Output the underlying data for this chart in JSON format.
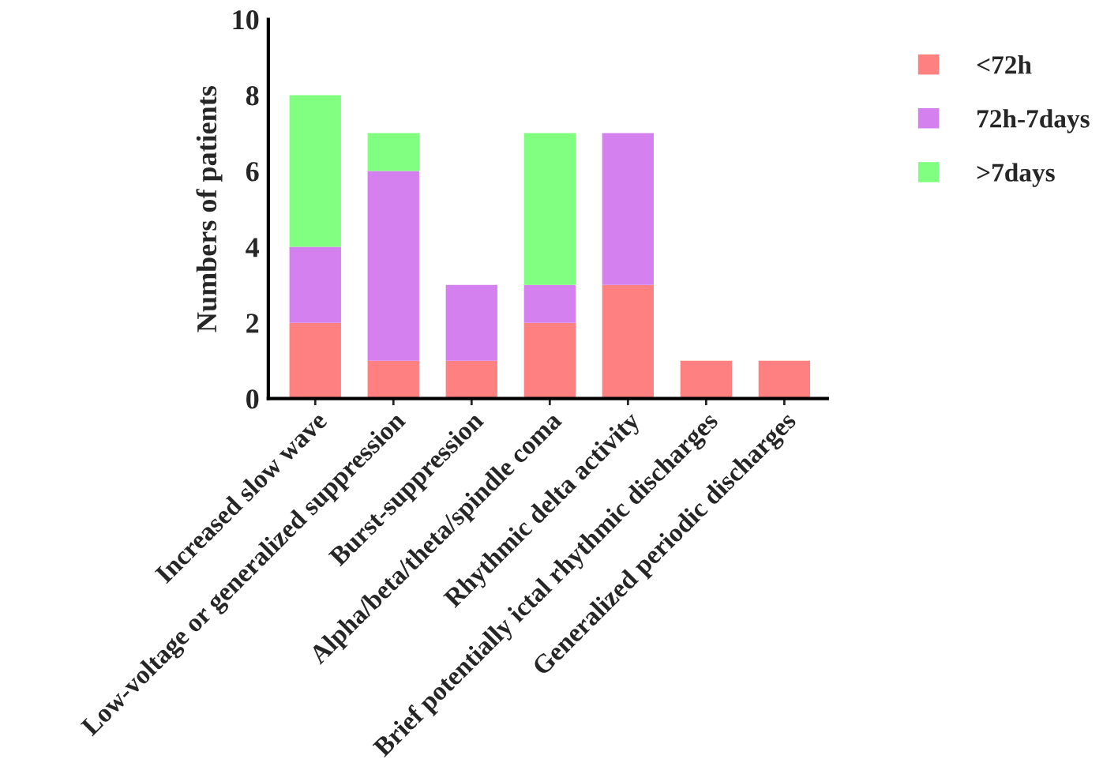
{
  "chart_data": {
    "type": "bar",
    "stacked": true,
    "ylabel": "Numbers of patients",
    "categories": [
      "Increased slow wave",
      "Low-voltage or generalized suppression",
      "Burst-suppression",
      "Alpha/beta/theta/spindle coma",
      "Rhythmic delta activity",
      "Brief potentially ictal rhythmic discharges",
      "Generalized periodic discharges"
    ],
    "series": [
      {
        "name": "<72h",
        "color": "#ff8080",
        "values": [
          2,
          1,
          1,
          2,
          3,
          1,
          1
        ]
      },
      {
        "name": "72h-7days",
        "color": "#d580ef",
        "values": [
          2,
          5,
          2,
          1,
          4,
          0,
          0
        ]
      },
      {
        "name": ">7days",
        "color": "#80ff80",
        "values": [
          4,
          1,
          0,
          4,
          0,
          0,
          0
        ]
      }
    ],
    "ylim": [
      0,
      10
    ],
    "yticks": [
      0,
      2,
      4,
      6,
      8,
      10
    ],
    "grid": false,
    "legend": "top right"
  }
}
